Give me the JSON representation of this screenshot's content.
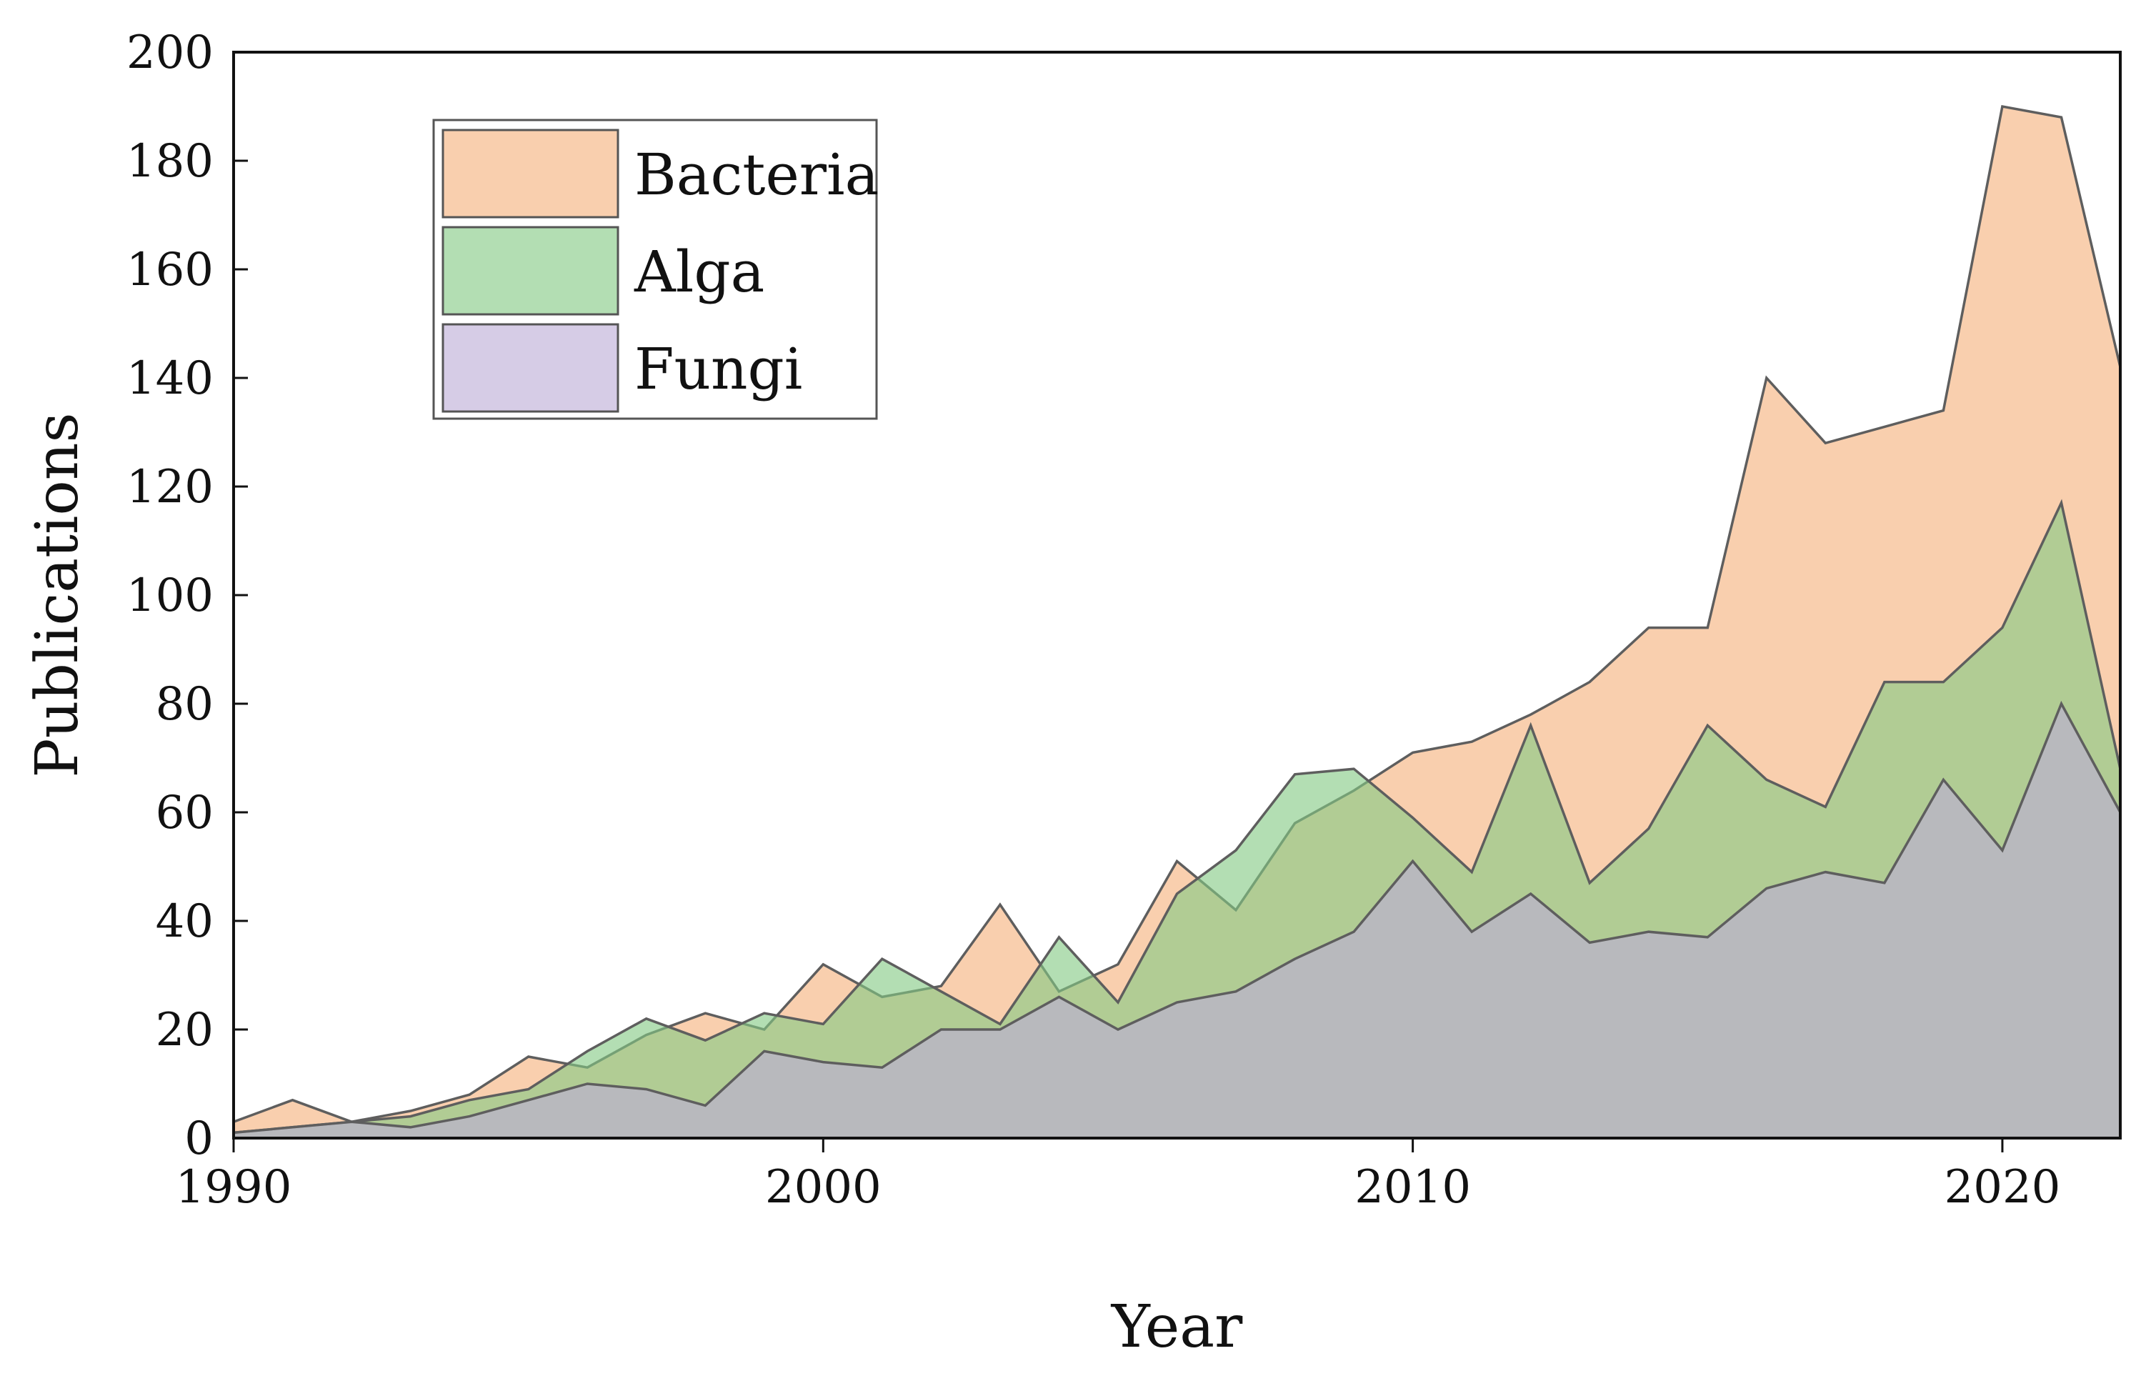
{
  "chart_data": {
    "type": "area",
    "title": "",
    "xlabel": "Year",
    "ylabel": "Publications",
    "xlim": [
      1990,
      2022
    ],
    "ylim": [
      0,
      200
    ],
    "x_ticks": [
      "1990",
      "2000",
      "2010",
      "2020"
    ],
    "y_ticks": [
      "0",
      "20",
      "40",
      "60",
      "80",
      "100",
      "120",
      "140",
      "160",
      "180",
      "200"
    ],
    "grid": false,
    "legend_position": "top-left",
    "x": [
      1990,
      1991,
      1992,
      1993,
      1994,
      1995,
      1996,
      1997,
      1998,
      1999,
      2000,
      2001,
      2002,
      2003,
      2004,
      2005,
      2006,
      2007,
      2008,
      2009,
      2010,
      2011,
      2012,
      2013,
      2014,
      2015,
      2016,
      2017,
      2018,
      2019,
      2020,
      2021,
      2022
    ],
    "series": [
      {
        "name": "Bacteria",
        "color": "#f5b27d",
        "values": [
          3,
          7,
          3,
          5,
          8,
          15,
          13,
          19,
          23,
          20,
          32,
          26,
          28,
          43,
          27,
          32,
          51,
          42,
          58,
          64,
          71,
          73,
          78,
          84,
          94,
          94,
          140,
          128,
          131,
          134,
          190,
          188,
          142
        ]
      },
      {
        "name": "Alga",
        "color": "#84c984",
        "values": [
          1,
          2,
          3,
          4,
          7,
          9,
          16,
          22,
          18,
          23,
          21,
          33,
          27,
          21,
          37,
          25,
          45,
          53,
          67,
          68,
          59,
          49,
          76,
          47,
          57,
          76,
          66,
          61,
          84,
          84,
          94,
          117,
          68
        ]
      },
      {
        "name": "Fungi",
        "color": "#bdacd7",
        "values": [
          1,
          2,
          3,
          2,
          4,
          7,
          10,
          9,
          6,
          16,
          14,
          13,
          20,
          20,
          26,
          20,
          25,
          27,
          33,
          38,
          51,
          38,
          45,
          36,
          38,
          37,
          46,
          49,
          47,
          66,
          53,
          80,
          60
        ]
      }
    ]
  }
}
